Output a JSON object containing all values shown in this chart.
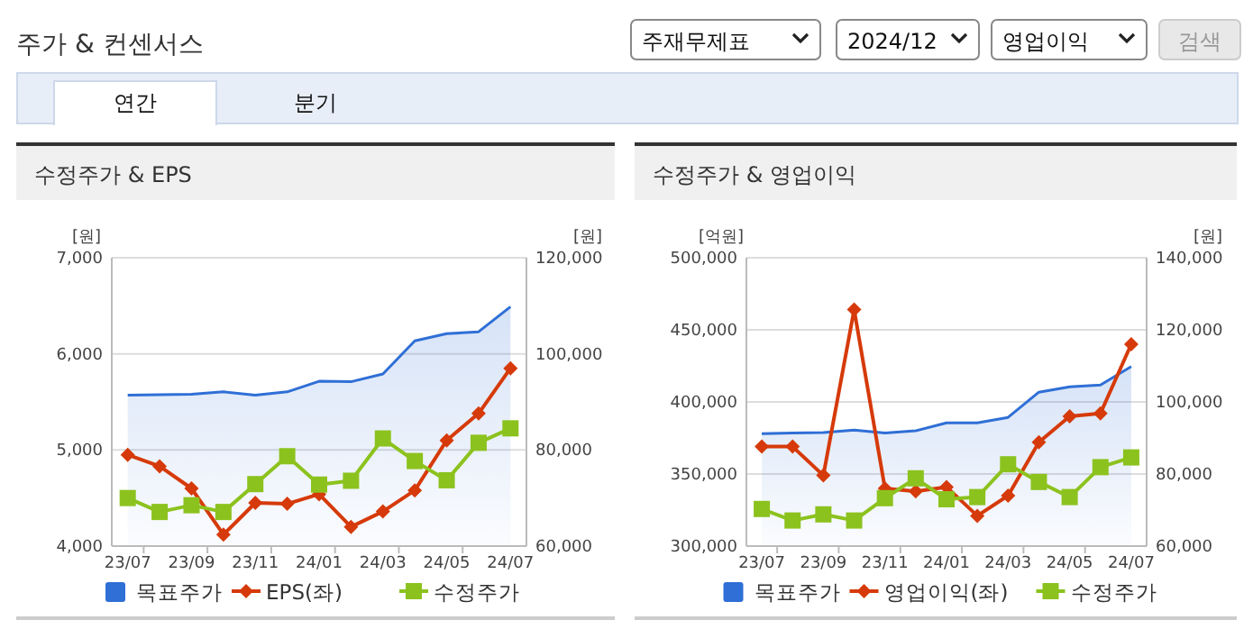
{
  "chart_data": [
    {
      "type": "other",
      "title": "주가 & 컨센서스",
      "annotations": [
        "주재무제표",
        "2024/12",
        "영업이익",
        "검색",
        "연간",
        "분기"
      ]
    },
    {
      "type": "line",
      "title": "수정주가 & EPS",
      "ylabel": "[원]",
      "y2label": "[원]",
      "categories": [
        "23/07",
        null,
        "23/09",
        null,
        "23/11",
        null,
        "24/01",
        null,
        "24/03",
        null,
        "24/05",
        null,
        "24/07"
      ],
      "series": [
        {
          "name": "목표주가",
          "type": "area",
          "axis": "y2",
          "color": "#2f6fd6",
          "values": [
            91400,
            91500,
            91600,
            92100,
            91400,
            92100,
            94300,
            94200,
            95800,
            102700,
            104200,
            104600,
            109800
          ]
        },
        {
          "name": "EPS(좌)",
          "type": "line",
          "axis": "y",
          "color": "#d63a0a",
          "marker": "diamond",
          "values": [
            4950,
            4830,
            4600,
            4120,
            4450,
            4440,
            4540,
            4200,
            4360,
            4580,
            5100,
            5380,
            5850
          ]
        },
        {
          "name": "수정주가",
          "type": "line",
          "axis": "y2",
          "color": "#8cc21e",
          "marker": "square",
          "values": [
            70000,
            67100,
            68500,
            67100,
            72900,
            78700,
            72800,
            73600,
            82400,
            77700,
            73700,
            81500,
            84500
          ]
        }
      ],
      "ylim": [
        4000,
        7000
      ],
      "yticks": [
        {
          "value": 4000,
          "label": "4,000"
        },
        {
          "value": 5000,
          "label": "5,000"
        },
        {
          "value": 6000,
          "label": "6,000"
        },
        {
          "value": 7000,
          "label": "7,000"
        }
      ],
      "y2lim": [
        60000,
        120000
      ],
      "y2ticks": [
        {
          "value": 60000,
          "label": "60,000"
        },
        {
          "value": 80000,
          "label": "80,000"
        },
        {
          "value": 100000,
          "label": "100,000"
        },
        {
          "value": 120000,
          "label": "120,000"
        }
      ],
      "grid": "y",
      "legend": "bottom"
    },
    {
      "type": "line",
      "title": "수정주가 & 영업이익",
      "ylabel": "[억원]",
      "y2label": "[원]",
      "categories": [
        "23/07",
        null,
        "23/09",
        null,
        "23/11",
        null,
        "24/01",
        null,
        "24/03",
        null,
        "24/05",
        null,
        "24/07"
      ],
      "series": [
        {
          "name": "목표주가",
          "type": "area",
          "axis": "y2",
          "color": "#2f6fd6",
          "values": [
            91200,
            91400,
            91500,
            92200,
            91400,
            92000,
            94200,
            94200,
            95700,
            102700,
            104200,
            104700,
            109800
          ]
        },
        {
          "name": "영업이익(좌)",
          "type": "line",
          "axis": "y",
          "color": "#d63a0a",
          "marker": "diamond",
          "values": [
            369000,
            369000,
            349000,
            464000,
            340000,
            338000,
            341000,
            321000,
            335000,
            372000,
            390000,
            392000,
            440000
          ]
        },
        {
          "name": "수정주가",
          "type": "line",
          "axis": "y2",
          "color": "#8cc21e",
          "marker": "square",
          "values": [
            70300,
            67100,
            68800,
            67100,
            73300,
            78800,
            73000,
            73600,
            82700,
            77800,
            73600,
            81900,
            84600
          ]
        }
      ],
      "ylim": [
        300000,
        500000
      ],
      "yticks": [
        {
          "value": 300000,
          "label": "300,000"
        },
        {
          "value": 350000,
          "label": "350,000"
        },
        {
          "value": 400000,
          "label": "400,000"
        },
        {
          "value": 450000,
          "label": "450,000"
        },
        {
          "value": 500000,
          "label": "500,000"
        }
      ],
      "y2lim": [
        60000,
        140000
      ],
      "y2ticks": [
        {
          "value": 60000,
          "label": "60,000"
        },
        {
          "value": 80000,
          "label": "80,000"
        },
        {
          "value": 100000,
          "label": "100,000"
        },
        {
          "value": 120000,
          "label": "120,000"
        },
        {
          "value": 140000,
          "label": "140,000"
        }
      ],
      "grid": "y",
      "legend": "bottom"
    }
  ]
}
